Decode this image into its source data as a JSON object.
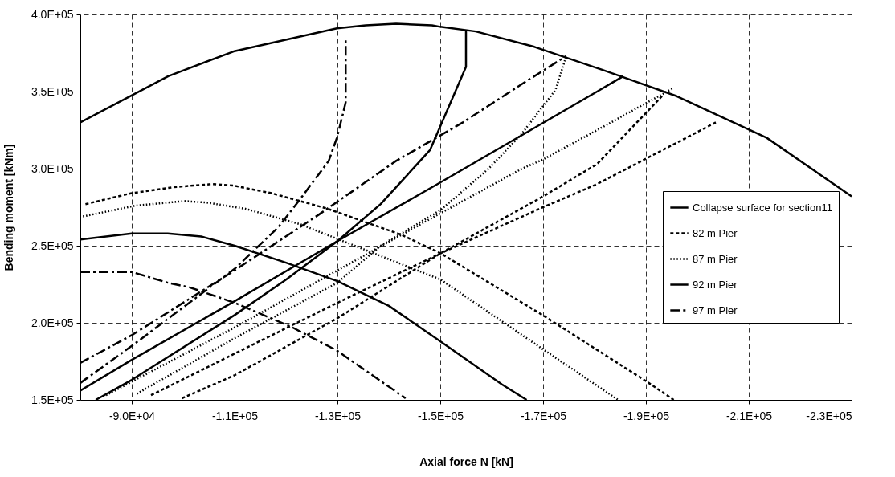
{
  "chart_data": {
    "type": "line",
    "xlabel": "Axial force N [kN]",
    "ylabel": "Bending moment [kNm]",
    "xlim": [
      -80000,
      -230000
    ],
    "ylim": [
      150000,
      400000
    ],
    "xticks": [
      {
        "value": -90000,
        "label": "-9.0E+04"
      },
      {
        "value": -110000,
        "label": "-1.1E+05"
      },
      {
        "value": -130000,
        "label": "-1.3E+05"
      },
      {
        "value": -150000,
        "label": "-1.5E+05"
      },
      {
        "value": -170000,
        "label": "-1.7E+05"
      },
      {
        "value": -190000,
        "label": "-1.9E+05"
      },
      {
        "value": -210000,
        "label": "-2.1E+05"
      },
      {
        "value": -230000,
        "label": "-2.3E+05"
      }
    ],
    "yticks": [
      {
        "value": 150000,
        "label": "1.5E+05"
      },
      {
        "value": 200000,
        "label": "2.0E+05"
      },
      {
        "value": 250000,
        "label": "2.5E+05"
      },
      {
        "value": 300000,
        "label": "3.0E+05"
      },
      {
        "value": 350000,
        "label": "3.5E+05"
      },
      {
        "value": 400000,
        "label": "4.0E+05"
      }
    ],
    "grid": true,
    "legend": "right",
    "series": [
      {
        "name": "Collapse surface for section11",
        "color": "#000000",
        "line_style": "solid",
        "x": [
          -80000,
          -97100,
          -109800,
          -129900,
          -135500,
          -141400,
          -148400,
          -150000,
          -156900,
          -168300,
          -181600,
          -196000,
          -213500,
          -230000
        ],
        "values": [
          330000,
          360000,
          376000,
          391000,
          393000,
          394000,
          393000,
          392000,
          389000,
          379000,
          364000,
          347000,
          320000,
          282000
        ]
      },
      {
        "name": "82 m Pier",
        "color": "#000000",
        "line_style": "dashed",
        "x": [
          -81000,
          -89800,
          -98100,
          -105600,
          -109800,
          -117300,
          -128100,
          -142500,
          -150100,
          -169900,
          -190100,
          -195400
        ],
        "values": [
          277000,
          284000,
          288000,
          290000,
          289000,
          284000,
          274000,
          257000,
          245000,
          205000,
          162000,
          150000
        ]
      },
      {
        "color": "#000000",
        "line_style": "dashed",
        "x": [
          -99750,
          -110000,
          -130000,
          -150000,
          -170000,
          -180500,
          -193400
        ],
        "values": [
          151000,
          166000,
          203000,
          245000,
          282000,
          303000,
          348000
        ]
      },
      {
        "color": "#000000",
        "line_style": "dashed",
        "x": [
          -93750,
          -110000,
          -130000,
          -150000,
          -170000,
          -180500,
          -203600
        ],
        "values": [
          153000,
          180000,
          213000,
          245000,
          275000,
          290000,
          330000
        ]
      },
      {
        "name": "87 m Pier",
        "color": "#000000",
        "line_style": "dotted",
        "x": [
          -80500,
          -90700,
          -100200,
          -104600,
          -112100,
          -122700,
          -150100,
          -169900,
          -184600
        ],
        "values": [
          269000,
          276000,
          279000,
          278000,
          274000,
          264000,
          228000,
          183000,
          150000
        ]
      },
      {
        "color": "#000000",
        "line_style": "dotted",
        "x": [
          -91000,
          -110000,
          -130000,
          -138400,
          -150000,
          -159400,
          -165700,
          -172400,
          -174500
        ],
        "values": [
          154000,
          190000,
          226000,
          250000,
          273000,
          300000,
          322000,
          351000,
          373000
        ]
      },
      {
        "color": "#000000",
        "line_style": "dotted",
        "x": [
          -85000,
          -110000,
          -130000,
          -150000,
          -165900,
          -170000,
          -180500,
          -195200
        ],
        "values": [
          153000,
          197000,
          234000,
          271000,
          300000,
          306000,
          325000,
          352000
        ]
      },
      {
        "name": "92 m Pier",
        "color": "#000000",
        "line_style": "solid",
        "x": [
          -80000,
          -90000,
          -97000,
          -103500,
          -110000,
          -120000,
          -130000,
          -140000,
          -150000,
          -162000,
          -166800
        ],
        "values": [
          254000,
          258000,
          258000,
          256000,
          250000,
          239000,
          227000,
          211000,
          188000,
          160000,
          150000
        ]
      },
      {
        "color": "#000000",
        "line_style": "solid",
        "x": [
          -83000,
          -90000,
          -110000,
          -120000,
          -130000,
          -138400,
          -148000,
          -155000,
          -155000
        ],
        "values": [
          150000,
          163000,
          205000,
          228000,
          253000,
          277000,
          312000,
          366000,
          389000
        ]
      },
      {
        "color": "#000000",
        "line_style": "solid",
        "x": [
          -80000,
          -90000,
          -110000,
          -130000,
          -150000,
          -180500,
          -185600
        ],
        "values": [
          156000,
          176000,
          214000,
          253000,
          291000,
          350000,
          360000
        ]
      },
      {
        "name": "97 m Pier",
        "color": "#000000",
        "line_style": "dashdot",
        "x": [
          -80000,
          -90000,
          -97000,
          -101250,
          -110000,
          -121250,
          -129900,
          -143250
        ],
        "values": [
          233000,
          233000,
          226000,
          223000,
          213000,
          197000,
          182000,
          151000
        ]
      },
      {
        "color": "#000000",
        "line_style": "dashdot",
        "x": [
          -80000,
          -90000,
          -100000,
          -110000,
          -118500,
          -122700,
          -128300,
          -129900,
          -131100,
          -131600,
          -131600
        ],
        "values": [
          161000,
          185000,
          210000,
          235000,
          262000,
          280000,
          305000,
          320000,
          336000,
          343000,
          385000
        ]
      },
      {
        "color": "#000000",
        "line_style": "dashdot",
        "x": [
          -80000,
          -90000,
          -110000,
          -126300,
          -141400,
          -154400,
          -166400,
          -174500
        ],
        "values": [
          174000,
          192000,
          234000,
          270000,
          305000,
          330000,
          356000,
          373000
        ]
      }
    ]
  }
}
